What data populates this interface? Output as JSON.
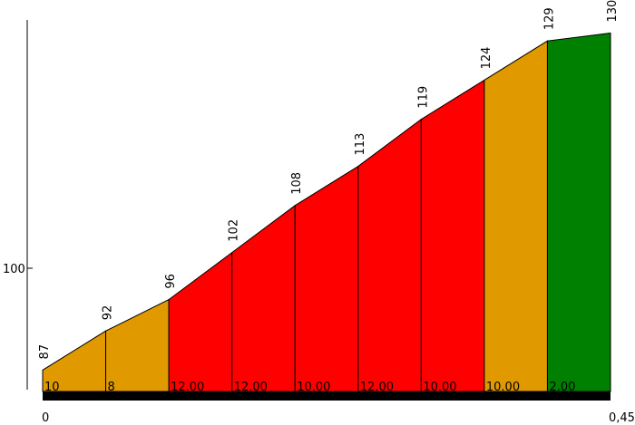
{
  "chart_data": {
    "type": "area",
    "x_start": 0,
    "x_end": 0.45,
    "x_tick_labels": [
      "0",
      "0,45"
    ],
    "y_tick_labels": [
      "100"
    ],
    "y_ticks": [
      100
    ],
    "ylim": [
      78,
      137
    ],
    "elevations": [
      87,
      92,
      96,
      102,
      108,
      113,
      119,
      124,
      129,
      130
    ],
    "elevation_labels": [
      "87",
      "92",
      "96",
      "102",
      "108",
      "113",
      "119",
      "124",
      "129",
      "130"
    ],
    "segments": [
      {
        "grade_label": "10",
        "color": "#e09a00"
      },
      {
        "grade_label": "8",
        "color": "#e09a00"
      },
      {
        "grade_label": "12.00",
        "color": "#ff0000"
      },
      {
        "grade_label": "12.00",
        "color": "#ff0000"
      },
      {
        "grade_label": "10.00",
        "color": "#ff0000"
      },
      {
        "grade_label": "12.00",
        "color": "#ff0000"
      },
      {
        "grade_label": "10.00",
        "color": "#ff0000"
      },
      {
        "grade_label": "10.00",
        "color": "#e09a00"
      },
      {
        "grade_label": "2.00",
        "color": "#008000"
      }
    ]
  }
}
